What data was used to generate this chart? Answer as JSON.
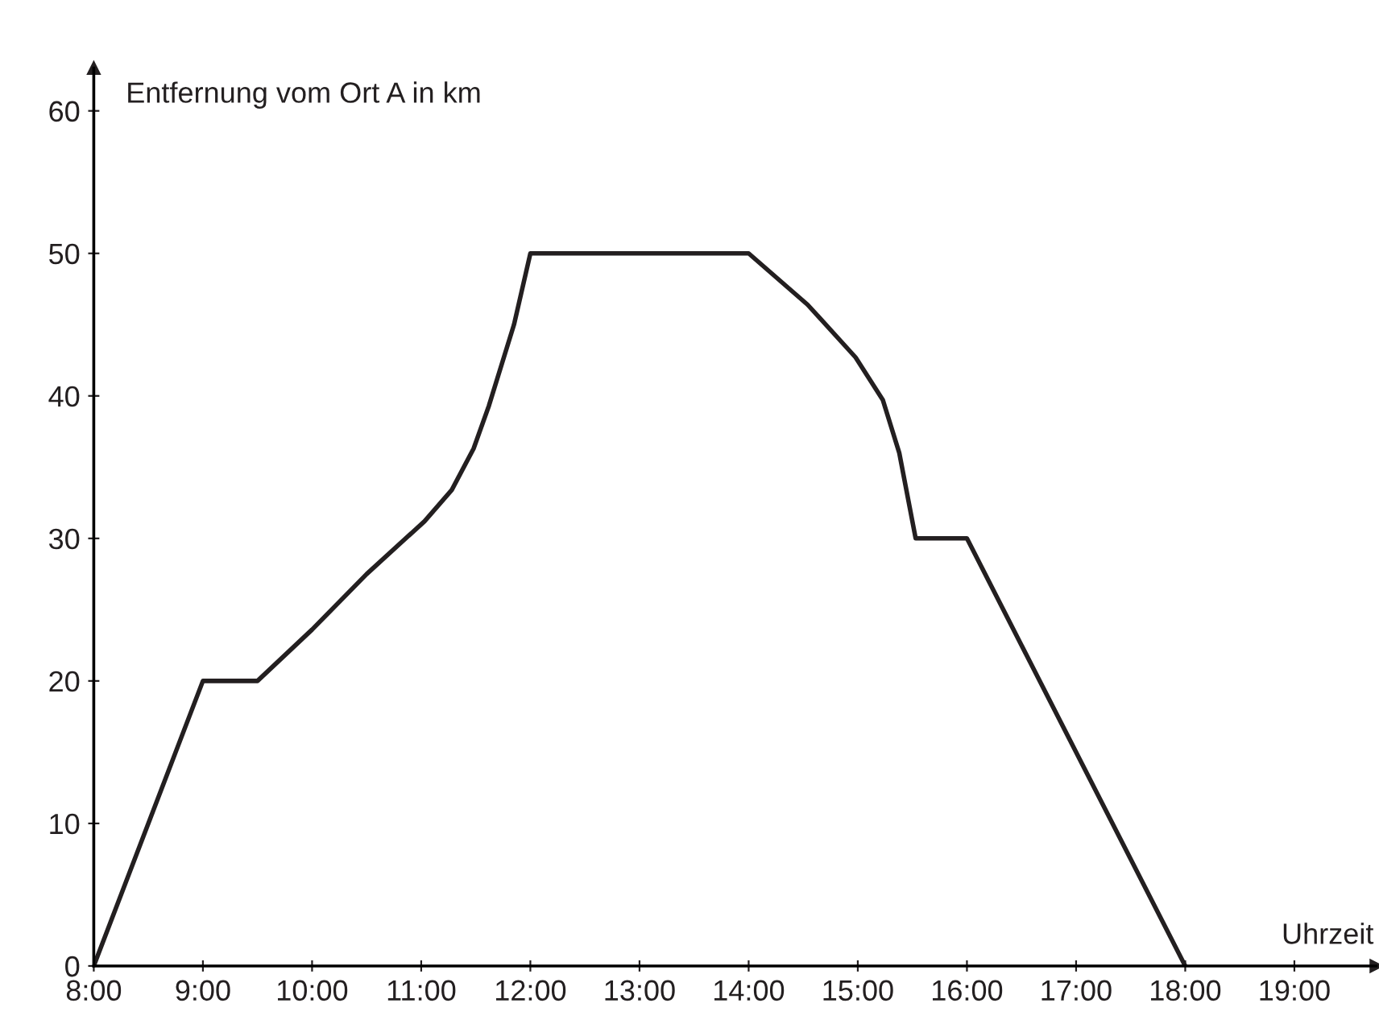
{
  "chart_data": {
    "type": "line",
    "xlabel": "Uhrzeit",
    "ylabel": "Entfernung vom Ort A in km",
    "x": [
      8,
      9,
      9.5,
      10,
      10.5,
      11.03,
      11.28,
      11.48,
      11.62,
      11.85,
      12,
      13,
      14,
      14.54,
      14.98,
      15.23,
      15.38,
      15.53,
      16,
      18
    ],
    "series": [
      {
        "color": "#231f20",
        "values": [
          0,
          20,
          20,
          23.6,
          27.5,
          31.2,
          33.4,
          36.3,
          39.3,
          45,
          50,
          50,
          50,
          46.4,
          42.7,
          39.7,
          36,
          30,
          30,
          0
        ]
      }
    ],
    "xlim": [
      8,
      19.75
    ],
    "ylim": [
      0,
      63
    ],
    "xticks": [
      {
        "value": 8,
        "label": "8:00"
      },
      {
        "value": 9,
        "label": "9:00"
      },
      {
        "value": 10,
        "label": "10:00"
      },
      {
        "value": 11,
        "label": "11:00"
      },
      {
        "value": 12,
        "label": "12:00"
      },
      {
        "value": 13,
        "label": "13:00"
      },
      {
        "value": 14,
        "label": "14:00"
      },
      {
        "value": 15,
        "label": "15:00"
      },
      {
        "value": 16,
        "label": "16:00"
      },
      {
        "value": 17,
        "label": "17:00"
      },
      {
        "value": 18,
        "label": "18:00"
      },
      {
        "value": 19,
        "label": "19:00"
      }
    ],
    "yticks": [
      0,
      10,
      20,
      30,
      40,
      50,
      60
    ],
    "grid": false,
    "marker": "none",
    "line_style": "solid"
  }
}
